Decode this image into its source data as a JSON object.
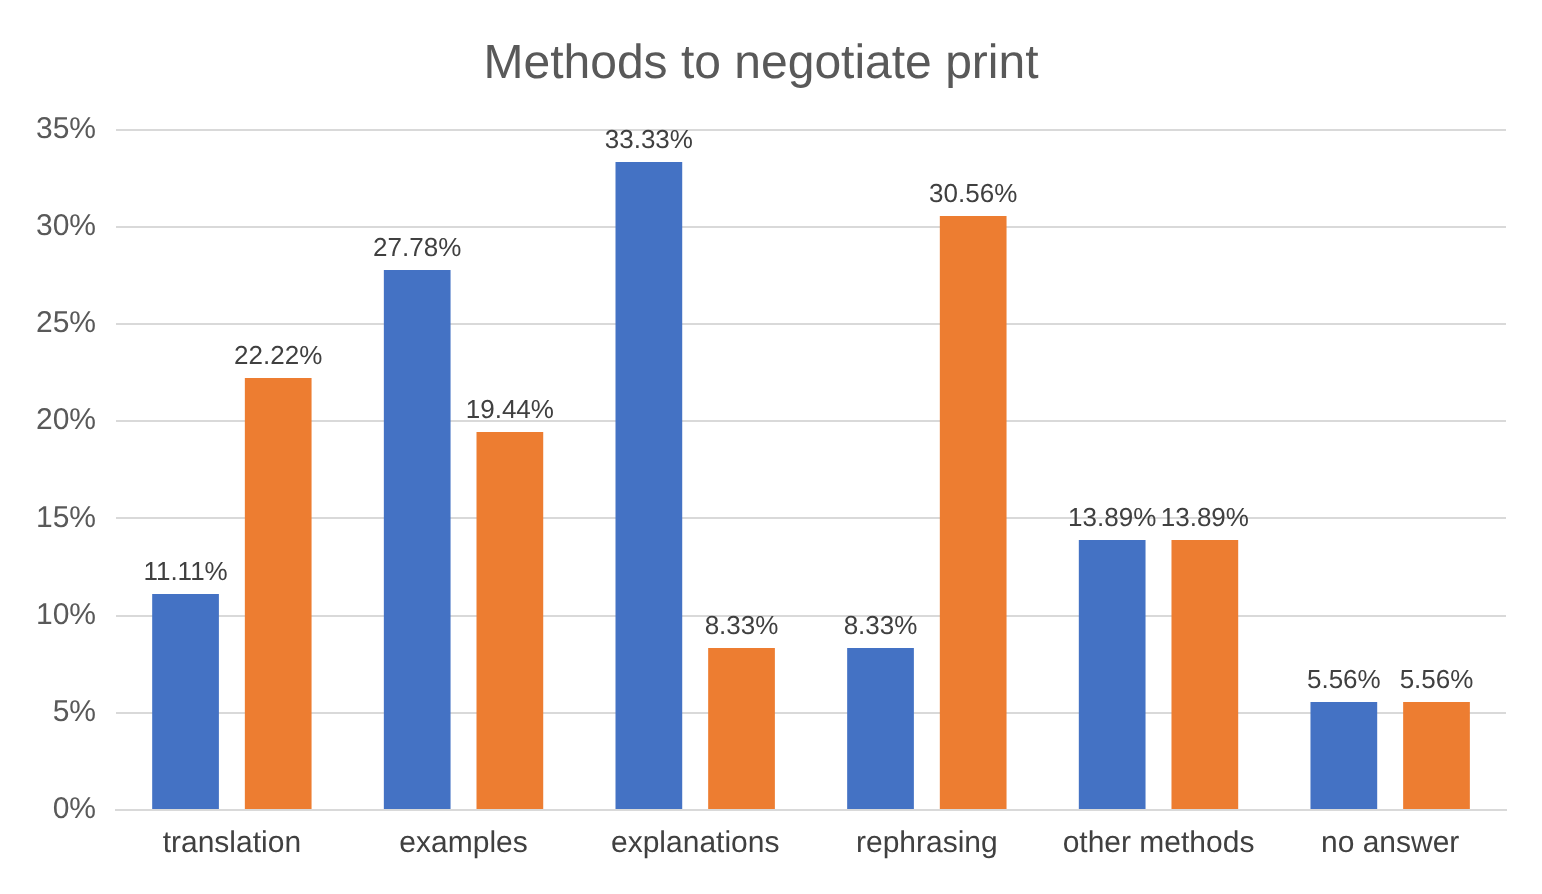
{
  "chart_data": {
    "type": "bar",
    "title": "Methods to negotiate print",
    "categories": [
      "translation",
      "examples",
      "explanations",
      "rephrasing",
      "other methods",
      "no answer"
    ],
    "series": [
      {
        "color": "#4472c4",
        "values": [
          11.11,
          27.78,
          33.33,
          8.33,
          13.89,
          5.56
        ],
        "value_labels": [
          "11.11%",
          "27.78%",
          "33.33%",
          "8.33%",
          "13.89%",
          "5.56%"
        ]
      },
      {
        "color": "#ed7d31",
        "values": [
          22.22,
          19.44,
          8.33,
          30.56,
          13.89,
          5.56
        ],
        "value_labels": [
          "22.22%",
          "19.44%",
          "8.33%",
          "30.56%",
          "13.89%",
          "5.56%"
        ]
      }
    ],
    "ylim": [
      0,
      35
    ],
    "yticks": [
      {
        "value": 0,
        "label": "0%"
      },
      {
        "value": 5,
        "label": "5%"
      },
      {
        "value": 10,
        "label": "10%"
      },
      {
        "value": 15,
        "label": "15%"
      },
      {
        "value": 20,
        "label": "20%"
      },
      {
        "value": 25,
        "label": "25%"
      },
      {
        "value": 30,
        "label": "30%"
      },
      {
        "value": 35,
        "label": "35%"
      }
    ],
    "grid": "y"
  }
}
